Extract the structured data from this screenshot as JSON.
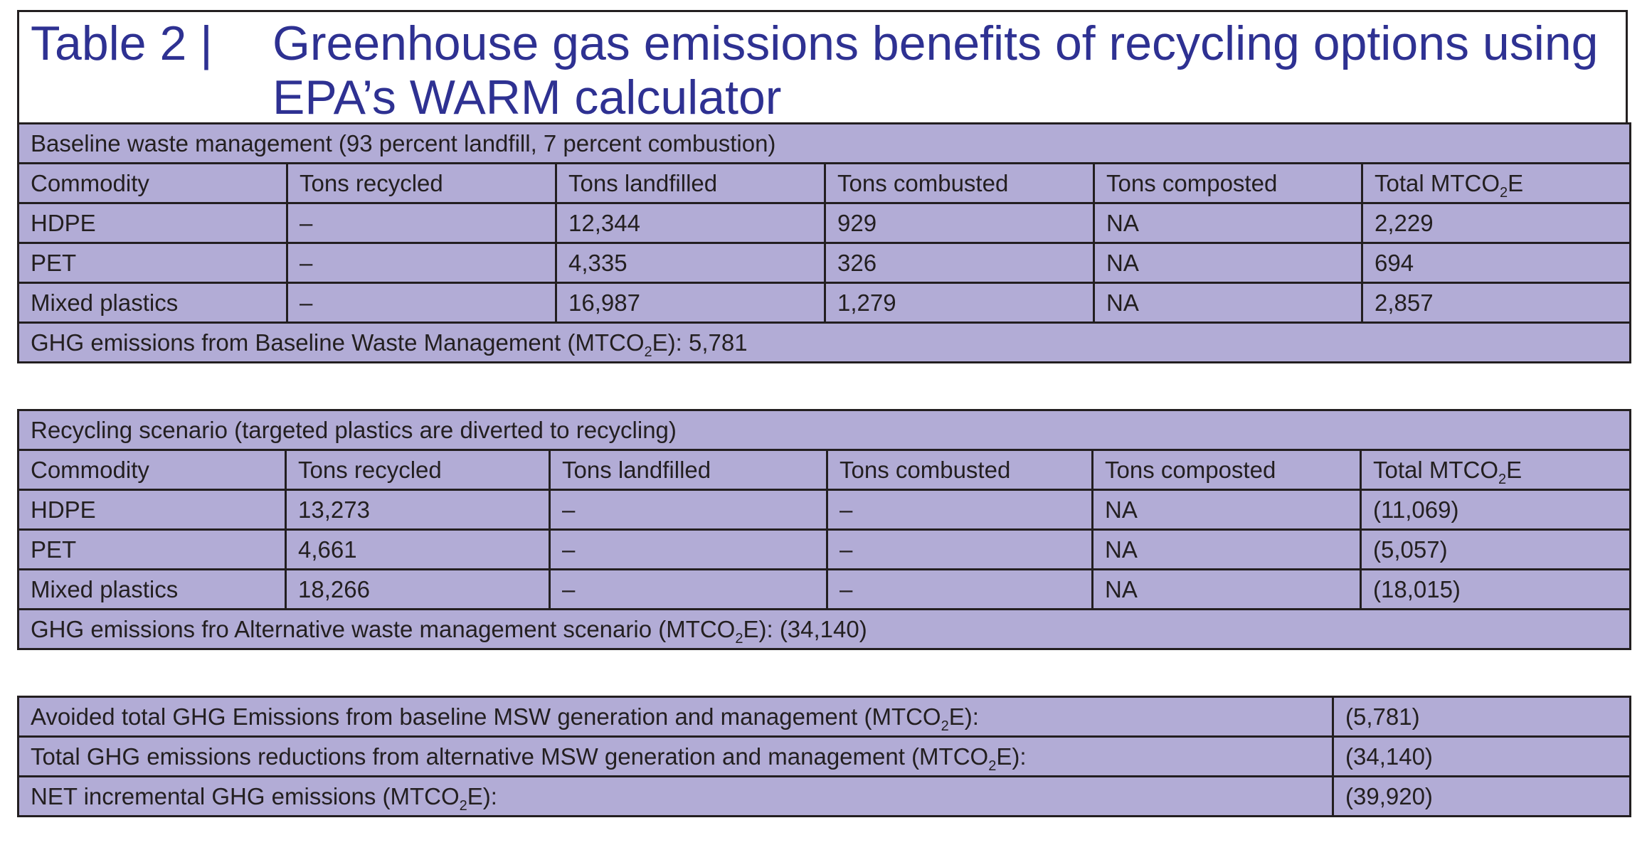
{
  "title": {
    "label": "Table 2  |",
    "line1": "Greenhouse gas emissions benefits of recycling options using",
    "line2": "EPA’s WARM calculator"
  },
  "baseline": {
    "heading": "Baseline waste management (93 percent landfill, 7 percent combustion)",
    "columns": [
      "Commodity",
      "Tons recycled",
      "Tons landfilled",
      "Tons combusted",
      "Tons composted",
      "Total MTCO2E"
    ],
    "rows": [
      [
        "HDPE",
        "–",
        "12,344",
        "929",
        "NA",
        "2,229"
      ],
      [
        "PET",
        "–",
        "4,335",
        "326",
        "NA",
        "694"
      ],
      [
        "Mixed plastics",
        "–",
        "16,987",
        "1,279",
        "NA",
        "2,857"
      ]
    ],
    "footer_pre": "GHG emissions from Baseline Waste Management (MTCO",
    "footer_post": "E): 5,781"
  },
  "recycling": {
    "heading": "Recycling scenario (targeted plastics are diverted to recycling)",
    "columns": [
      "Commodity",
      "Tons recycled",
      "Tons landfilled",
      "Tons combusted",
      "Tons composted",
      "Total MTCO2E"
    ],
    "rows": [
      [
        "HDPE",
        "13,273",
        "–",
        "–",
        "NA",
        "(11,069)"
      ],
      [
        "PET",
        "4,661",
        "–",
        "–",
        "NA",
        "(5,057)"
      ],
      [
        "Mixed plastics",
        "18,266",
        "–",
        "–",
        "NA",
        "(18,015)"
      ]
    ],
    "footer_pre": "GHG emissions fro Alternative waste management scenario (MTCO",
    "footer_post": "E): (34,140)"
  },
  "summary": {
    "rows": [
      {
        "pre": "Avoided total GHG Emissions from baseline MSW generation and management (MTCO",
        "post": "E):",
        "value": "(5,781)"
      },
      {
        "pre": "Total GHG emissions reductions from alternative MSW generation and management (MTCO",
        "post": "E):",
        "value": "(34,140)"
      },
      {
        "pre": "NET incremental GHG emissions (MTCO",
        "post": "E):",
        "value": "(39,920)"
      }
    ]
  },
  "sub_two": "2",
  "colors": {
    "title_text": "#2e3192",
    "cell_fill": "#b2acd6",
    "border": "#231f20"
  }
}
